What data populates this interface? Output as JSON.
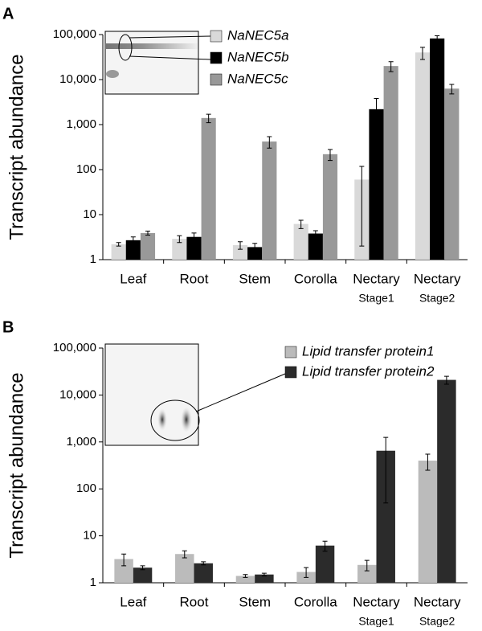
{
  "chart_data": [
    {
      "type": "bar",
      "panel": "A",
      "y_label": "Transcript abundance",
      "log": true,
      "categories": [
        "Leaf",
        "Root",
        "Stem",
        "Corolla",
        "Nectary",
        "Nectary"
      ],
      "category_sublabels": [
        null,
        null,
        null,
        null,
        "Stage1",
        "Stage2"
      ],
      "series": [
        {
          "name": "NaNEC5a",
          "color": "#d9d9d9",
          "values": [
            2.2,
            2.9,
            2.1,
            6.2,
            60,
            40000
          ],
          "errors": [
            0.2,
            0.5,
            0.4,
            1.3,
            58,
            12000
          ]
        },
        {
          "name": "NaNEC5b",
          "color": "#000000",
          "values": [
            2.7,
            3.2,
            1.9,
            3.8,
            2200,
            82000
          ],
          "errors": [
            0.5,
            0.7,
            0.4,
            0.6,
            1600,
            12000
          ]
        },
        {
          "name": "NaNEC5c",
          "color": "#999999",
          "values": [
            3.9,
            1400,
            420,
            220,
            20000,
            6300
          ],
          "errors": [
            0.4,
            300,
            120,
            60,
            5000,
            1500
          ]
        }
      ],
      "ylim": [
        1,
        100000
      ],
      "yticks": [
        1,
        10,
        100,
        {
          "value": 1000,
          "label": "1,000"
        },
        {
          "value": 10000,
          "label": "10,000"
        },
        {
          "value": 100000,
          "label": "100,000"
        }
      ]
    },
    {
      "type": "bar",
      "panel": "B",
      "y_label": "Transcript abundance",
      "log": true,
      "categories": [
        "Leaf",
        "Root",
        "Stem",
        "Corolla",
        "Nectary",
        "Nectary"
      ],
      "category_sublabels": [
        null,
        null,
        null,
        null,
        "Stage1",
        "Stage2"
      ],
      "series": [
        {
          "name": "Lipid transfer protein1",
          "color": "#bbbbbb",
          "values": [
            3.2,
            4.1,
            1.4,
            1.7,
            2.4,
            400
          ],
          "errors": [
            0.9,
            0.7,
            0.1,
            0.4,
            0.6,
            150
          ]
        },
        {
          "name": "Lipid transfer protein2",
          "color": "#2b2b2b",
          "values": [
            2.1,
            2.6,
            1.5,
            6.2,
            650,
            21000
          ],
          "errors": [
            0.2,
            0.2,
            0.1,
            1.5,
            600,
            4000
          ]
        }
      ],
      "ylim": [
        1,
        100000
      ],
      "yticks": [
        1,
        10,
        100,
        {
          "value": 1000,
          "label": "1,000"
        },
        {
          "value": 10000,
          "label": "10,000"
        },
        {
          "value": 100000,
          "label": "100,000"
        }
      ]
    }
  ]
}
